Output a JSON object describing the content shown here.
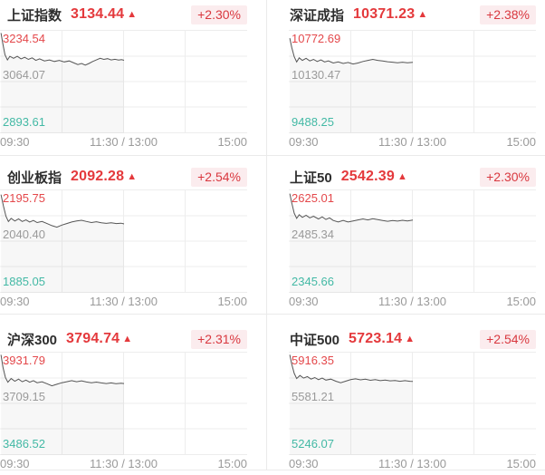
{
  "colors": {
    "up_red": "#e4393c",
    "badge_text": "#d9383f",
    "badge_bg": "#fbecee",
    "label_high_red": "#e4484b",
    "label_mid_gray": "#9a9a9a",
    "label_low_green": "#43b9a5",
    "grid_line": "#ededed",
    "spark_line": "#555555",
    "divider": "#eaeaea",
    "title_text": "#2e2e2e"
  },
  "up_arrow": "▲",
  "x_axis_ticks": [
    "09:30",
    "11:30 / 13:00",
    "15:00"
  ],
  "sparkline_encoding": "points_pct are [x,y] in percent of the chart plot box; x 0=09:30, 50=11:30/13:00, 100=15:00; y 0=top axis label value, 100=bottom axis label value",
  "chart_data": [
    {
      "type": "line",
      "title": "上证指数",
      "value": "3134.44",
      "direction": "up",
      "change_percent": "+2.30%",
      "y_labels": {
        "high": "3234.54",
        "mid": "3064.07",
        "low": "2893.61"
      },
      "y_range": [
        2893.61,
        3234.54
      ],
      "prev_close": 3064.07,
      "x_ticks": [
        "09:30",
        "11:30 / 13:00",
        "15:00"
      ],
      "points_pct": [
        [
          0.4,
          3
        ],
        [
          1.2,
          14
        ],
        [
          2,
          24
        ],
        [
          3,
          29
        ],
        [
          4,
          25.5
        ],
        [
          5.5,
          27.5
        ],
        [
          7,
          25.5
        ],
        [
          8.5,
          28
        ],
        [
          10,
          26.5
        ],
        [
          11.5,
          28.5
        ],
        [
          13,
          27
        ],
        [
          14.5,
          29.5
        ],
        [
          16,
          28
        ],
        [
          18,
          30
        ],
        [
          20,
          29
        ],
        [
          22,
          30.5
        ],
        [
          24,
          29.5
        ],
        [
          26,
          31
        ],
        [
          28,
          30
        ],
        [
          30,
          32
        ],
        [
          31.5,
          33.5
        ],
        [
          33,
          32.5
        ],
        [
          34.5,
          34
        ],
        [
          36,
          32.5
        ],
        [
          37.5,
          30.5
        ],
        [
          39,
          29
        ],
        [
          40.5,
          27.5
        ],
        [
          42,
          28.5
        ],
        [
          43.5,
          27.8
        ],
        [
          45,
          29
        ],
        [
          46.5,
          28.4
        ],
        [
          48,
          29.2
        ],
        [
          49.2,
          28.8
        ],
        [
          50.2,
          29.4
        ]
      ]
    },
    {
      "type": "line",
      "title": "深证成指",
      "value": "10371.23",
      "direction": "up",
      "change_percent": "+2.38%",
      "y_labels": {
        "high": "10772.69",
        "mid": "10130.47",
        "low": "9488.25"
      },
      "y_range": [
        9488.25,
        10772.69
      ],
      "prev_close": 10130.47,
      "x_ticks": [
        "09:30",
        "11:30 / 13:00",
        "15:00"
      ],
      "points_pct": [
        [
          0.4,
          8
        ],
        [
          1.2,
          17
        ],
        [
          2.2,
          26
        ],
        [
          3.2,
          31
        ],
        [
          4.2,
          27
        ],
        [
          5.5,
          29.5
        ],
        [
          7,
          27.5
        ],
        [
          8.5,
          30
        ],
        [
          10,
          28.5
        ],
        [
          11.5,
          30.5
        ],
        [
          13,
          29
        ],
        [
          14.5,
          31
        ],
        [
          16,
          30
        ],
        [
          18,
          32
        ],
        [
          20,
          31
        ],
        [
          22,
          32.5
        ],
        [
          24,
          31.5
        ],
        [
          26,
          33
        ],
        [
          28,
          32
        ],
        [
          30,
          30.5
        ],
        [
          32,
          29.5
        ],
        [
          34,
          28.5
        ],
        [
          36,
          29.5
        ],
        [
          38,
          30
        ],
        [
          40,
          30.8
        ],
        [
          42,
          31.2
        ],
        [
          44,
          31.8
        ],
        [
          46,
          31.2
        ],
        [
          48,
          31.8
        ],
        [
          50.2,
          31.3
        ]
      ]
    },
    {
      "type": "line",
      "title": "创业板指",
      "value": "2092.28",
      "direction": "up",
      "change_percent": "+2.54%",
      "y_labels": {
        "high": "2195.75",
        "mid": "2040.40",
        "low": "1885.05"
      },
      "y_range": [
        1885.05,
        2195.75
      ],
      "prev_close": 2040.4,
      "x_ticks": [
        "09:30",
        "11:30 / 13:00",
        "15:00"
      ],
      "points_pct": [
        [
          0.4,
          5
        ],
        [
          1.4,
          16
        ],
        [
          2.4,
          26
        ],
        [
          3.4,
          31
        ],
        [
          4.5,
          28
        ],
        [
          6,
          30.5
        ],
        [
          7.5,
          28.5
        ],
        [
          9,
          31
        ],
        [
          10.5,
          29.5
        ],
        [
          12,
          31.5
        ],
        [
          13.5,
          30
        ],
        [
          15,
          32
        ],
        [
          17,
          31
        ],
        [
          19,
          33
        ],
        [
          21,
          35
        ],
        [
          23,
          36.5
        ],
        [
          25,
          34.5
        ],
        [
          27,
          33
        ],
        [
          29,
          31.5
        ],
        [
          31,
          30.5
        ],
        [
          33,
          29.8
        ],
        [
          35,
          31
        ],
        [
          37,
          32
        ],
        [
          39,
          31.2
        ],
        [
          41,
          32.2
        ],
        [
          43,
          32.8
        ],
        [
          45,
          32.2
        ],
        [
          47,
          33
        ],
        [
          49,
          32.6
        ],
        [
          50.2,
          33.3
        ]
      ]
    },
    {
      "type": "line",
      "title": "上证50",
      "value": "2542.39",
      "direction": "up",
      "change_percent": "+2.30%",
      "y_labels": {
        "high": "2625.01",
        "mid": "2485.34",
        "low": "2345.66"
      },
      "y_range": [
        2345.66,
        2625.01
      ],
      "prev_close": 2485.34,
      "x_ticks": [
        "09:30",
        "11:30 / 13:00",
        "15:00"
      ],
      "points_pct": [
        [
          0.4,
          4
        ],
        [
          1.2,
          13
        ],
        [
          2.2,
          23
        ],
        [
          3.2,
          28
        ],
        [
          4.2,
          24.5
        ],
        [
          5.5,
          27
        ],
        [
          7,
          25
        ],
        [
          8.5,
          27.5
        ],
        [
          10,
          26
        ],
        [
          12,
          28.5
        ],
        [
          13.5,
          26.5
        ],
        [
          15,
          29
        ],
        [
          16.5,
          27.5
        ],
        [
          18,
          30
        ],
        [
          20,
          31.5
        ],
        [
          22,
          30
        ],
        [
          24,
          31.5
        ],
        [
          26,
          30.5
        ],
        [
          28,
          29.5
        ],
        [
          30,
          28.5
        ],
        [
          32,
          29.5
        ],
        [
          34,
          28.3
        ],
        [
          36,
          29.2
        ],
        [
          38,
          30
        ],
        [
          40,
          30.8
        ],
        [
          42,
          30
        ],
        [
          44,
          30.6
        ],
        [
          46,
          29.8
        ],
        [
          48,
          30.4
        ],
        [
          50.2,
          29.6
        ]
      ]
    },
    {
      "type": "line",
      "title": "沪深300",
      "value": "3794.74",
      "direction": "up",
      "change_percent": "+2.31%",
      "y_labels": {
        "high": "3931.79",
        "mid": "3709.15",
        "low": "3486.52"
      },
      "y_range": [
        3486.52,
        3931.79
      ],
      "prev_close": 3709.15,
      "x_ticks": [
        "09:30",
        "11:30 / 13:00",
        "15:00"
      ],
      "points_pct": [
        [
          0.4,
          3
        ],
        [
          1.2,
          15
        ],
        [
          2.2,
          25
        ],
        [
          3.2,
          29.5
        ],
        [
          4.5,
          26
        ],
        [
          6,
          28.5
        ],
        [
          7.5,
          26.5
        ],
        [
          9,
          29
        ],
        [
          10.5,
          27.5
        ],
        [
          12,
          29.5
        ],
        [
          13.5,
          28
        ],
        [
          15,
          30
        ],
        [
          17,
          29
        ],
        [
          19,
          31
        ],
        [
          21,
          33
        ],
        [
          23,
          31.5
        ],
        [
          25,
          30
        ],
        [
          27,
          29
        ],
        [
          29,
          28
        ],
        [
          31,
          29
        ],
        [
          33,
          28.2
        ],
        [
          35,
          29.3
        ],
        [
          37,
          30
        ],
        [
          39,
          29.4
        ],
        [
          41,
          30.2
        ],
        [
          43,
          30.8
        ],
        [
          45,
          30.2
        ],
        [
          47,
          31
        ],
        [
          49,
          30.4
        ],
        [
          50.2,
          30.8
        ]
      ]
    },
    {
      "type": "line",
      "title": "中证500",
      "value": "5723.14",
      "direction": "up",
      "change_percent": "+2.54%",
      "y_labels": {
        "high": "5916.35",
        "mid": "5581.21",
        "low": "5246.07"
      },
      "y_range": [
        5246.07,
        5916.35
      ],
      "prev_close": 5581.21,
      "x_ticks": [
        "09:30",
        "11:30 / 13:00",
        "15:00"
      ],
      "points_pct": [
        [
          0.4,
          3
        ],
        [
          1.2,
          12
        ],
        [
          2.2,
          21
        ],
        [
          3.2,
          26
        ],
        [
          4.5,
          23
        ],
        [
          6,
          25.5
        ],
        [
          7.5,
          24
        ],
        [
          9,
          26.5
        ],
        [
          10.5,
          25
        ],
        [
          12,
          27
        ],
        [
          13.5,
          25.5
        ],
        [
          15,
          27.5
        ],
        [
          17,
          26.5
        ],
        [
          19,
          28.5
        ],
        [
          21,
          30
        ],
        [
          23,
          28.5
        ],
        [
          25,
          27
        ],
        [
          27,
          26.2
        ],
        [
          29,
          27.2
        ],
        [
          31,
          26.6
        ],
        [
          33,
          27.6
        ],
        [
          35,
          27
        ],
        [
          37,
          28
        ],
        [
          39,
          27.4
        ],
        [
          41,
          28.2
        ],
        [
          43,
          27.8
        ],
        [
          45,
          28.6
        ],
        [
          47,
          28
        ],
        [
          49,
          28.6
        ],
        [
          50.2,
          28.8
        ]
      ]
    }
  ]
}
